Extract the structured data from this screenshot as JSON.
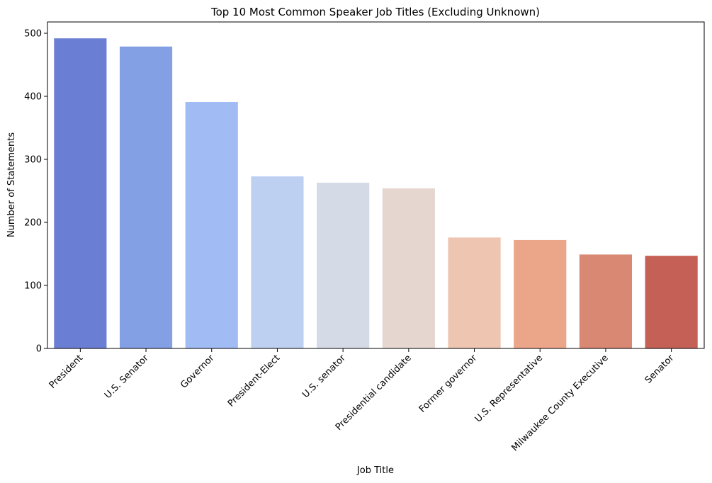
{
  "chart_data": {
    "type": "bar",
    "title": "Top 10 Most Common Speaker Job Titles (Excluding Unknown)",
    "xlabel": "Job Title",
    "ylabel": "Number of Statements",
    "categories": [
      "President",
      "U.S. Senator",
      "Governor",
      "President-Elect",
      "U.S. senator",
      "Presidential candidate",
      "Former governor",
      "U.S. Representative",
      "Milwaukee County Executive",
      "Senator"
    ],
    "values": [
      492,
      479,
      391,
      273,
      263,
      254,
      176,
      172,
      149,
      147
    ],
    "colors": [
      "#6a7ed3",
      "#84a0e5",
      "#a1bbf4",
      "#bdd0f2",
      "#d5dbe6",
      "#e5d7d0",
      "#edc5b1",
      "#eba68a",
      "#d98873",
      "#c46055"
    ],
    "ylim": [
      0,
      518
    ],
    "yticks": [
      0,
      100,
      200,
      300,
      400,
      500
    ],
    "grid": false,
    "legend": "none"
  }
}
